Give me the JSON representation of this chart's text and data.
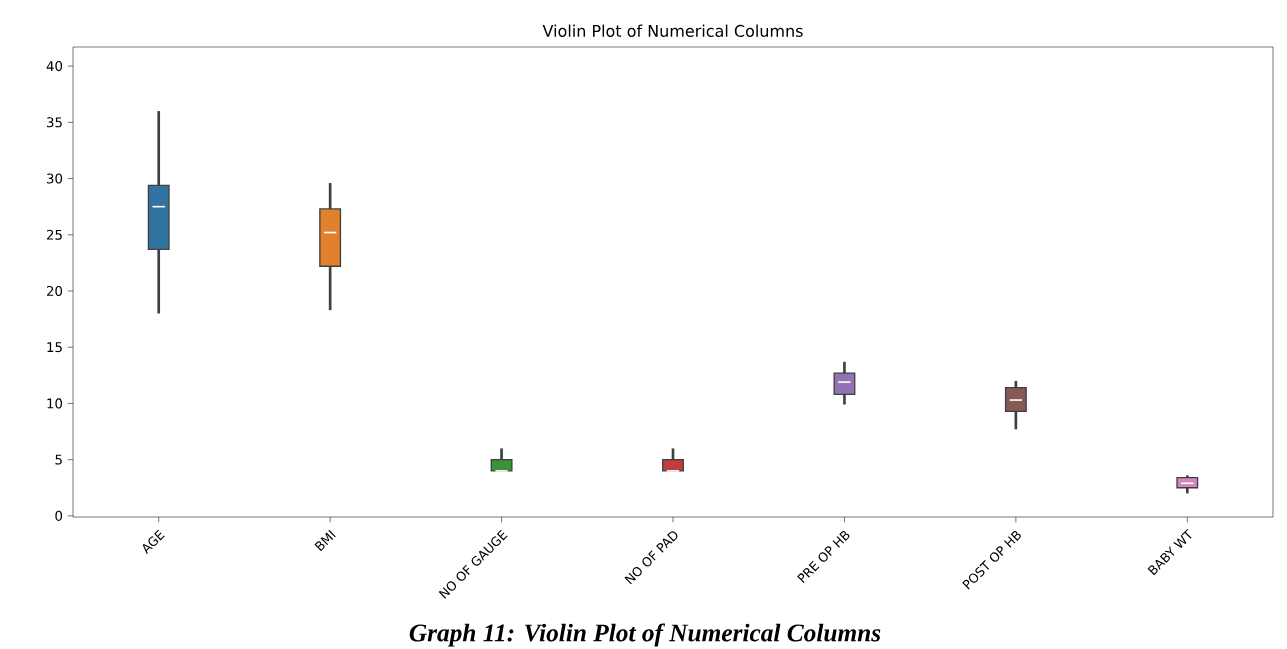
{
  "chart_data": {
    "type": "box",
    "title": "Violin Plot of Numerical Columns",
    "categories": [
      "AGE",
      "BMI",
      "NO OF GAUGE",
      "NO OF PAD",
      "PRE OP HB",
      "POST OP HB",
      "BABY WT"
    ],
    "boxes": [
      {
        "low": 18,
        "q1": 23.7,
        "median": 27.5,
        "q3": 29.4,
        "high": 36
      },
      {
        "low": 18.3,
        "q1": 22.2,
        "median": 25.2,
        "q3": 27.3,
        "high": 29.6
      },
      {
        "low": 4,
        "q1": 4,
        "median": 4,
        "q3": 5,
        "high": 6
      },
      {
        "low": 4,
        "q1": 4,
        "median": 4,
        "q3": 5,
        "high": 6
      },
      {
        "low": 9.9,
        "q1": 10.8,
        "median": 11.9,
        "q3": 12.7,
        "high": 13.7
      },
      {
        "low": 7.7,
        "q1": 9.3,
        "median": 10.3,
        "q3": 11.4,
        "high": 12
      },
      {
        "low": 2,
        "q1": 2.5,
        "median": 2.9,
        "q3": 3.4,
        "high": 3.6
      }
    ],
    "colors": [
      "#3274a1",
      "#e1812c",
      "#3a923a",
      "#c03d3e",
      "#9372b2",
      "#845b53",
      "#d684bd"
    ],
    "ylim": [
      -0.1,
      41.7
    ],
    "yticks": [
      0,
      5,
      10,
      15,
      20,
      25,
      30,
      35,
      40
    ],
    "grid": false,
    "annotations": [
      "Graph 11: Violin Plot of Numerical Columns"
    ]
  }
}
